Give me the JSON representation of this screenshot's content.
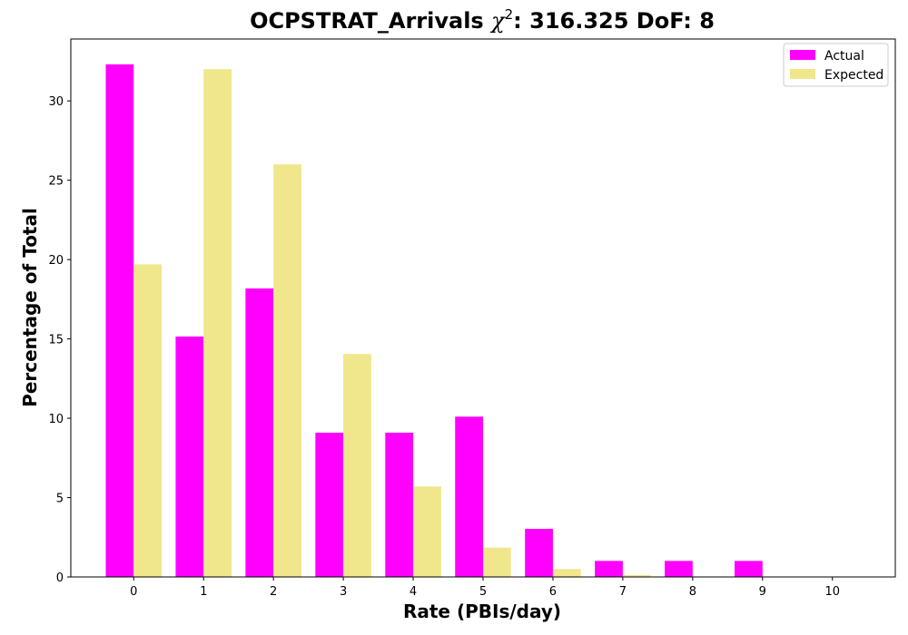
{
  "chart_data": {
    "type": "bar",
    "title": "OCPSTRAT_Arrivals χ²: 316.325 DoF: 8",
    "title_parts": {
      "prefix": "OCPSTRAT_Arrivals ",
      "chi": "χ",
      "sup": "2",
      "suffix": ": 316.325 DoF: 8"
    },
    "xlabel": "Rate (PBIs/day)",
    "ylabel": "Percentage of Total",
    "categories": [
      "0",
      "1",
      "2",
      "3",
      "4",
      "5",
      "6",
      "7",
      "8",
      "9",
      "10"
    ],
    "series": [
      {
        "name": "Actual",
        "color": "#ff00ff",
        "values": [
          32.3,
          15.15,
          18.18,
          9.09,
          9.09,
          10.1,
          3.03,
          1.01,
          1.01,
          1.01,
          0
        ]
      },
      {
        "name": "Expected",
        "color": "#f0e68c",
        "values": [
          19.7,
          32.0,
          26.0,
          14.05,
          5.7,
          1.85,
          0.5,
          0.12,
          0.02,
          0.0,
          0.0
        ]
      }
    ],
    "ylim": [
      0,
      33.9
    ],
    "yticks": [
      0,
      5,
      10,
      15,
      20,
      25,
      30
    ],
    "legend": "top-right",
    "grid": false
  }
}
